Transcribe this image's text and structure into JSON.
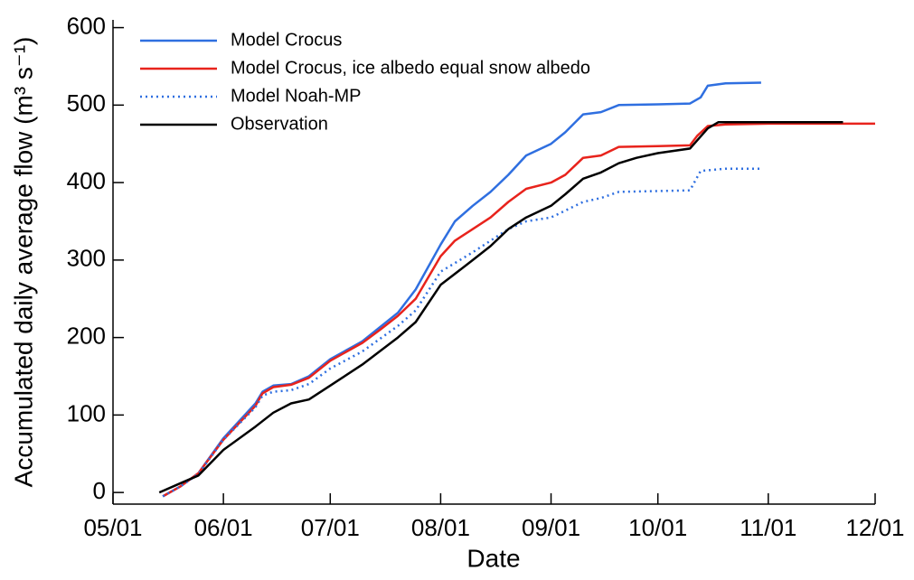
{
  "chart_data": {
    "type": "line",
    "x_label": "Date",
    "y_label": "Accumulated daily average flow (m³ s⁻¹)",
    "xlim": [
      "05/01",
      "12/01"
    ],
    "xticks": [
      "05/01",
      "06/01",
      "07/01",
      "08/01",
      "09/01",
      "10/01",
      "11/01",
      "12/01"
    ],
    "ylim": [
      -15,
      610
    ],
    "yticks": [
      0,
      100,
      200,
      300,
      400,
      500,
      600
    ],
    "legend": "upper left",
    "series": [
      {
        "name": "Model Crocus",
        "color": "#2f6fe0",
        "style": "solid",
        "x": [
          "05/15",
          "05/20",
          "05/25",
          "06/01",
          "06/10",
          "06/12",
          "06/15",
          "06/20",
          "06/25",
          "07/01",
          "07/10",
          "07/20",
          "07/25",
          "08/01",
          "08/05",
          "08/10",
          "08/15",
          "08/20",
          "08/25",
          "09/01",
          "09/05",
          "09/10",
          "09/15",
          "09/20",
          "10/01",
          "10/10",
          "10/13",
          "10/15",
          "10/20",
          "10/30"
        ],
        "values": [
          -5,
          8,
          25,
          70,
          115,
          130,
          138,
          140,
          150,
          172,
          195,
          232,
          262,
          320,
          350,
          370,
          388,
          410,
          435,
          450,
          465,
          488,
          491,
          500,
          501,
          502,
          510,
          525,
          528,
          529
        ]
      },
      {
        "name": "Model Crocus, ice albedo equal snow albedo",
        "color": "#e8231c",
        "style": "solid",
        "x": [
          "05/15",
          "05/20",
          "05/25",
          "06/01",
          "06/10",
          "06/12",
          "06/15",
          "06/20",
          "06/25",
          "07/01",
          "07/10",
          "07/15",
          "07/20",
          "07/25",
          "08/01",
          "08/05",
          "08/10",
          "08/15",
          "08/20",
          "08/25",
          "09/01",
          "09/05",
          "09/10",
          "09/15",
          "09/20",
          "10/01",
          "10/10",
          "10/12",
          "10/15",
          "10/20",
          "11/01",
          "12/01"
        ],
        "values": [
          -5,
          8,
          25,
          68,
          112,
          128,
          136,
          139,
          148,
          170,
          193,
          210,
          228,
          250,
          305,
          325,
          340,
          355,
          375,
          392,
          400,
          410,
          432,
          435,
          446,
          447,
          448,
          460,
          473,
          475,
          476,
          476
        ]
      },
      {
        "name": "Model Noah-MP",
        "color": "#2f6fe0",
        "style": "dotted",
        "x": [
          "05/15",
          "05/20",
          "05/25",
          "06/01",
          "06/10",
          "06/12",
          "06/15",
          "06/20",
          "06/25",
          "07/01",
          "07/10",
          "07/20",
          "07/25",
          "08/01",
          "08/10",
          "08/15",
          "08/20",
          "08/25",
          "09/01",
          "09/10",
          "09/15",
          "09/20",
          "10/01",
          "10/10",
          "10/13",
          "10/20",
          "10/30"
        ],
        "values": [
          -5,
          8,
          24,
          68,
          110,
          125,
          130,
          132,
          140,
          160,
          182,
          215,
          235,
          285,
          310,
          325,
          340,
          350,
          355,
          375,
          380,
          388,
          389,
          390,
          415,
          418,
          418
        ]
      },
      {
        "name": "Observation",
        "color": "#000000",
        "style": "solid",
        "x": [
          "05/14",
          "05/20",
          "05/25",
          "06/01",
          "06/10",
          "06/15",
          "06/20",
          "06/25",
          "07/01",
          "07/10",
          "07/20",
          "07/25",
          "08/01",
          "08/10",
          "08/15",
          "08/20",
          "08/25",
          "09/01",
          "09/05",
          "09/10",
          "09/15",
          "09/20",
          "09/25",
          "10/01",
          "10/10",
          "10/15",
          "10/18",
          "11/01",
          "11/22"
        ],
        "values": [
          0,
          12,
          22,
          55,
          85,
          103,
          115,
          120,
          138,
          165,
          200,
          220,
          268,
          300,
          318,
          340,
          355,
          370,
          385,
          405,
          413,
          425,
          432,
          438,
          444,
          470,
          478,
          478,
          478
        ]
      }
    ]
  }
}
